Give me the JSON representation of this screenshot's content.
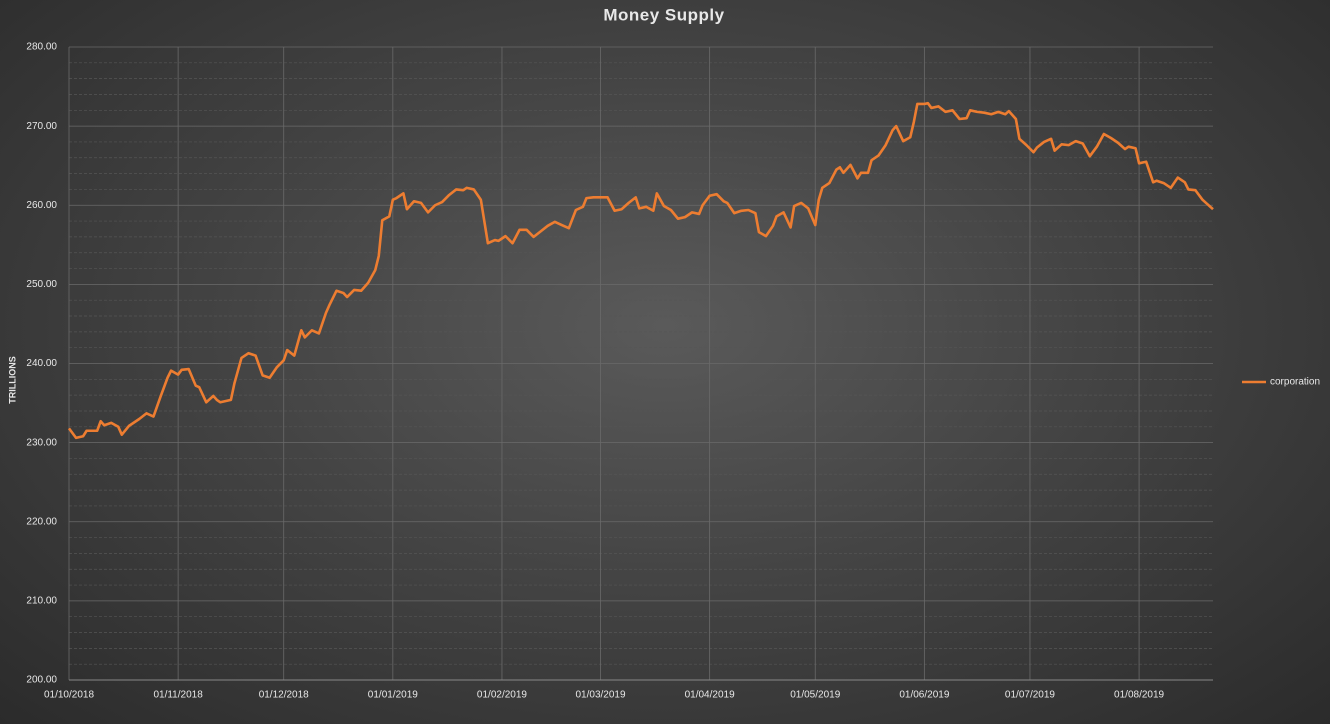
{
  "chart_data": {
    "type": "line",
    "title": "Money Supply",
    "y_label": "TRILLIONS",
    "x": [
      "01/10/2018",
      "03/10/2018",
      "05/10/2018",
      "06/10/2018",
      "09/10/2018",
      "10/10/2018",
      "11/10/2018",
      "13/10/2018",
      "15/10/2018",
      "16/10/2018",
      "18/10/2018",
      "21/10/2018",
      "23/10/2018",
      "25/10/2018",
      "27/10/2018",
      "29/10/2018",
      "30/10/2018",
      "01/11/2018",
      "02/11/2018",
      "04/11/2018",
      "06/11/2018",
      "07/11/2018",
      "09/11/2018",
      "11/11/2018",
      "12/11/2018",
      "13/11/2018",
      "16/11/2018",
      "17/11/2018",
      "19/11/2018",
      "21/11/2018",
      "23/11/2018",
      "25/11/2018",
      "27/11/2018",
      "29/11/2018",
      "01/12/2018",
      "02/12/2018",
      "04/12/2018",
      "06/12/2018",
      "07/12/2018",
      "09/12/2018",
      "11/12/2018",
      "13/12/2018",
      "14/12/2018",
      "16/12/2018",
      "18/12/2018",
      "19/12/2018",
      "21/12/2018",
      "23/12/2018",
      "25/12/2018",
      "27/12/2018",
      "28/12/2018",
      "29/12/2018",
      "31/12/2018",
      "01/01/2019",
      "02/01/2019",
      "04/01/2019",
      "05/01/2019",
      "07/01/2019",
      "09/01/2019",
      "11/01/2019",
      "13/01/2019",
      "15/01/2019",
      "17/01/2019",
      "19/01/2019",
      "21/01/2019",
      "22/01/2019",
      "24/01/2019",
      "26/01/2019",
      "28/01/2019",
      "30/01/2019",
      "31/01/2019",
      "02/02/2019",
      "04/02/2019",
      "06/02/2019",
      "08/02/2019",
      "10/02/2019",
      "12/02/2019",
      "14/02/2019",
      "16/02/2019",
      "18/02/2019",
      "20/02/2019",
      "22/02/2019",
      "24/02/2019",
      "25/02/2019",
      "27/02/2019",
      "01/03/2019",
      "03/03/2019",
      "05/03/2019",
      "07/03/2019",
      "09/03/2019",
      "11/03/2019",
      "12/03/2019",
      "14/03/2019",
      "16/03/2019",
      "17/03/2019",
      "19/03/2019",
      "21/03/2019",
      "23/03/2019",
      "25/03/2019",
      "27/03/2019",
      "29/03/2019",
      "30/03/2019",
      "01/04/2019",
      "03/04/2019",
      "05/04/2019",
      "06/04/2019",
      "08/04/2019",
      "10/04/2019",
      "12/04/2019",
      "14/04/2019",
      "15/04/2019",
      "17/04/2019",
      "19/04/2019",
      "20/04/2019",
      "22/04/2019",
      "24/04/2019",
      "25/04/2019",
      "27/04/2019",
      "29/04/2019",
      "01/05/2019",
      "02/05/2019",
      "03/05/2019",
      "05/05/2019",
      "07/05/2019",
      "08/05/2019",
      "09/05/2019",
      "11/05/2019",
      "13/05/2019",
      "14/05/2019",
      "16/05/2019",
      "17/05/2019",
      "19/05/2019",
      "21/05/2019",
      "23/05/2019",
      "24/05/2019",
      "26/05/2019",
      "28/05/2019",
      "29/05/2019",
      "30/05/2019",
      "01/06/2019",
      "02/06/2019",
      "03/06/2019",
      "05/06/2019",
      "07/06/2019",
      "09/06/2019",
      "11/06/2019",
      "13/06/2019",
      "14/06/2019",
      "16/06/2019",
      "18/06/2019",
      "20/06/2019",
      "22/06/2019",
      "24/06/2019",
      "25/06/2019",
      "27/06/2019",
      "28/06/2019",
      "30/06/2019",
      "02/07/2019",
      "03/07/2019",
      "05/07/2019",
      "07/07/2019",
      "08/07/2019",
      "10/07/2019",
      "12/07/2019",
      "14/07/2019",
      "16/07/2019",
      "18/07/2019",
      "20/07/2019",
      "22/07/2019",
      "24/07/2019",
      "26/07/2019",
      "28/07/2019",
      "29/07/2019",
      "31/07/2019",
      "01/08/2019",
      "03/08/2019",
      "05/08/2019",
      "06/08/2019",
      "08/08/2019",
      "10/08/2019",
      "12/08/2019",
      "14/08/2019",
      "15/08/2019",
      "17/08/2019",
      "19/08/2019",
      "21/08/2019",
      "22/08/2019"
    ],
    "series": [
      {
        "name": "corporation",
        "color": "#ed7d31",
        "values": [
          231.8,
          230.6,
          230.8,
          231.5,
          231.5,
          232.7,
          232.2,
          232.5,
          232.0,
          231.0,
          232.1,
          233.0,
          233.7,
          233.3,
          235.8,
          238.2,
          239.1,
          238.6,
          239.2,
          239.3,
          237.2,
          237.0,
          235.1,
          235.9,
          235.4,
          235.1,
          235.4,
          237.5,
          240.7,
          241.3,
          241.0,
          238.5,
          238.2,
          239.5,
          240.4,
          241.7,
          241.0,
          244.2,
          243.3,
          244.2,
          243.8,
          246.4,
          247.4,
          249.2,
          248.9,
          248.4,
          249.3,
          249.2,
          250.2,
          251.8,
          253.6,
          258.1,
          258.6,
          260.7,
          260.9,
          261.5,
          259.5,
          260.5,
          260.3,
          259.1,
          260.0,
          260.4,
          261.3,
          262.0,
          261.9,
          262.2,
          262.0,
          260.7,
          255.2,
          255.6,
          255.5,
          256.1,
          255.2,
          256.9,
          256.9,
          256.0,
          256.7,
          257.4,
          257.9,
          257.5,
          257.1,
          259.4,
          259.8,
          260.9,
          261.0,
          261.0,
          261.0,
          259.3,
          259.5,
          260.3,
          261.0,
          259.6,
          259.8,
          259.3,
          261.5,
          259.9,
          259.4,
          258.3,
          258.5,
          259.1,
          258.9,
          260.0,
          261.2,
          261.4,
          260.5,
          260.3,
          259.0,
          259.3,
          259.4,
          259.0,
          256.6,
          256.1,
          257.4,
          258.6,
          259.1,
          257.2,
          259.9,
          260.3,
          259.6,
          257.5,
          260.7,
          262.2,
          262.8,
          264.5,
          264.8,
          264.1,
          265.1,
          263.4,
          264.1,
          264.1,
          265.7,
          266.3,
          267.6,
          269.5,
          270.0,
          268.1,
          268.6,
          270.5,
          272.8,
          272.8,
          272.9,
          272.3,
          272.5,
          271.8,
          272.0,
          270.9,
          271.0,
          272.0,
          271.8,
          271.7,
          271.5,
          271.8,
          271.5,
          271.9,
          270.9,
          268.4,
          267.6,
          266.7,
          267.3,
          268.0,
          268.4,
          266.9,
          267.7,
          267.6,
          268.1,
          267.8,
          266.2,
          267.4,
          269.0,
          268.5,
          267.9,
          267.1,
          267.4,
          267.2,
          265.3,
          265.5,
          262.9,
          263.1,
          262.8,
          262.2,
          263.5,
          262.9,
          262.0,
          261.9,
          260.7,
          259.9,
          259.5
        ]
      }
    ],
    "xlim": [
      "01/10/2018",
      "22/08/2019"
    ],
    "xticks": [
      "01/10/2018",
      "01/11/2018",
      "01/12/2018",
      "01/01/2019",
      "01/02/2019",
      "01/03/2019",
      "01/04/2019",
      "01/05/2019",
      "01/06/2019",
      "01/07/2019",
      "01/08/2019"
    ],
    "ylim": [
      200,
      280
    ],
    "yticks": [
      {
        "value": 200,
        "label": "200.00"
      },
      {
        "value": 210,
        "label": "210.00"
      },
      {
        "value": 220,
        "label": "220.00"
      },
      {
        "value": 230,
        "label": "230.00"
      },
      {
        "value": 240,
        "label": "240.00"
      },
      {
        "value": 250,
        "label": "250.00"
      },
      {
        "value": 260,
        "label": "260.00"
      },
      {
        "value": 270,
        "label": "270.00"
      },
      {
        "value": 280,
        "label": "280.00"
      }
    ],
    "grid": true,
    "minor_grid": true,
    "legend": "right"
  }
}
